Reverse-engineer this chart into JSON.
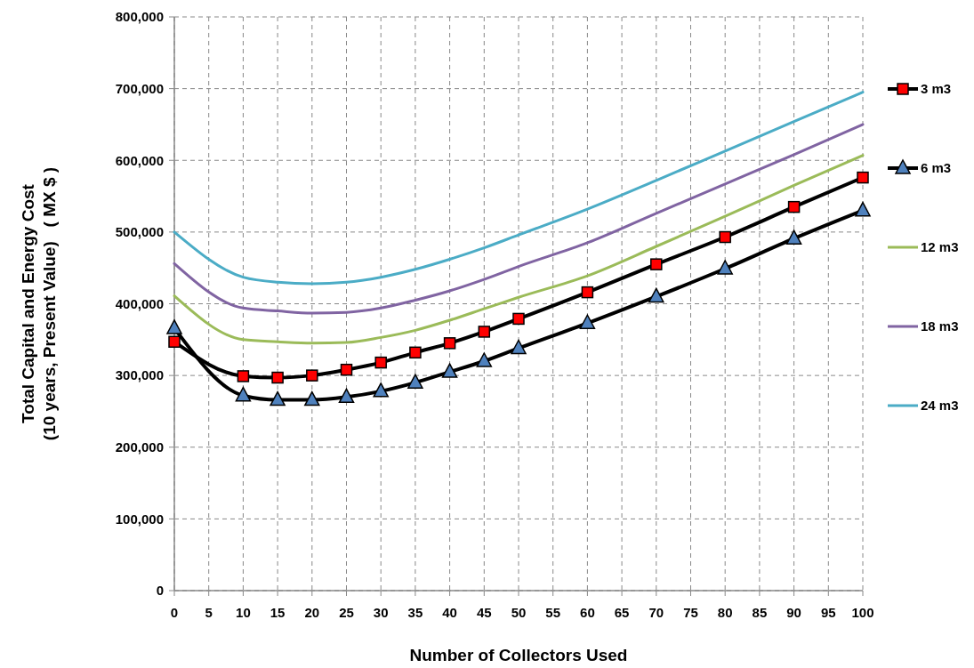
{
  "chart_data": {
    "type": "line",
    "xlabel": "Number of Collectors Used",
    "ylabel": "Total Capital and Energy Cost\n(10 years, Present Value)   ( MX $ )",
    "x": [
      0,
      10,
      15,
      20,
      25,
      30,
      35,
      40,
      45,
      50,
      60,
      70,
      80,
      90,
      100
    ],
    "series": [
      {
        "name": "3 m3",
        "color": "#000000",
        "marker": "square",
        "colors": [
          "#ff0000",
          "#ff0000",
          "#ff0000",
          "#ff0000",
          "#ff0000",
          "#ff0000",
          "#ff0000",
          "#ff0000",
          "#ff0000",
          "#ff0000",
          "#ff0000",
          "#ff0000",
          "#ff0000",
          "#ff0000",
          "#ff0000"
        ],
        "values": [
          347000,
          299000,
          297000,
          300000,
          308000,
          318000,
          332000,
          345000,
          361000,
          379000,
          416000,
          455000,
          493000,
          535000,
          576000
        ]
      },
      {
        "name": "6 m3",
        "color": "#000000",
        "marker": "triangle",
        "colors": [
          "#4f81bd",
          "#4f81bd",
          "#4f81bd",
          "#4f81bd",
          "#4f81bd",
          "#4f81bd",
          "#4f81bd",
          "#4f81bd",
          "#4f81bd",
          "#4f81bd",
          "#4f81bd",
          "#4f81bd",
          "#4f81bd",
          "#4f81bd",
          "#4f81bd"
        ],
        "values": [
          366000,
          272000,
          266000,
          266000,
          270000,
          278000,
          290000,
          305000,
          320000,
          338000,
          373000,
          410000,
          449000,
          491000,
          530000
        ]
      },
      {
        "name": "12 m3",
        "color": "#9bbb59",
        "marker": "none",
        "values": [
          411000,
          350000,
          347000,
          345000,
          346000,
          353000,
          363000,
          377000,
          393000,
          409000,
          439000,
          480000,
          522000,
          565000,
          607000
        ]
      },
      {
        "name": "18 m3",
        "color": "#8064a2",
        "marker": "none",
        "values": [
          456000,
          394000,
          390000,
          387000,
          388000,
          394000,
          405000,
          418000,
          434000,
          452000,
          485000,
          526000,
          567000,
          608000,
          650000
        ]
      },
      {
        "name": "24 m3",
        "color": "#4bacc6",
        "marker": "none",
        "values": [
          500000,
          437000,
          430000,
          428000,
          430000,
          437000,
          448000,
          462000,
          478000,
          496000,
          532000,
          572000,
          613000,
          654000,
          695000
        ]
      }
    ],
    "xlim": [
      0,
      100
    ],
    "xticks": [
      0,
      5,
      10,
      15,
      20,
      25,
      30,
      35,
      40,
      45,
      50,
      55,
      60,
      65,
      70,
      75,
      80,
      85,
      90,
      95,
      100
    ],
    "ylim": [
      0,
      800000
    ],
    "yticks": [
      0,
      {
        "value": 100000,
        "label": "100,000"
      },
      {
        "value": 200000,
        "label": "200,000"
      },
      {
        "value": 300000,
        "label": "300,000"
      },
      {
        "value": 400000,
        "label": "400,000"
      },
      {
        "value": 500000,
        "label": "500,000"
      },
      {
        "value": 600000,
        "label": "600,000"
      },
      {
        "value": 700000,
        "label": "700,000"
      },
      {
        "value": 800000,
        "label": "800,000"
      }
    ],
    "grid": true,
    "legend": "right",
    "line_style": "solid"
  }
}
